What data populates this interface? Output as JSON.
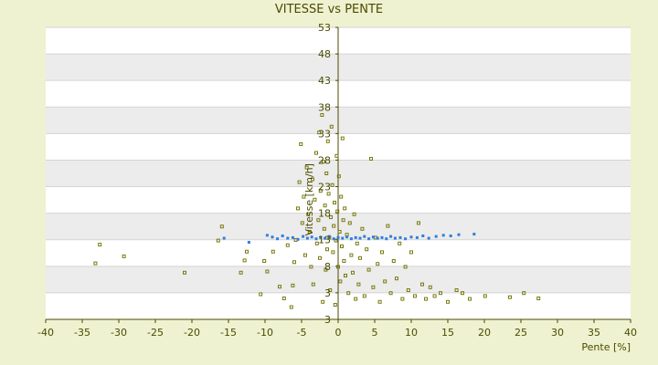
{
  "chart_data": {
    "type": "scatter",
    "title": "VITESSE vs PENTE",
    "xlabel": "Pente [%]",
    "ylabel": "Vitesse [km/h]",
    "xlim": [
      -40,
      40
    ],
    "ylim": [
      3,
      53
    ],
    "xticks": [
      "-40",
      "-35",
      "-30",
      "-25",
      "-20",
      "-15",
      "-10",
      "-5",
      "0",
      "5",
      "10",
      "15",
      "20",
      "25",
      "30",
      "35",
      "40"
    ],
    "yticks": [
      "3",
      "3",
      "8",
      "13",
      "18",
      "23",
      "28",
      "33",
      "38",
      "43",
      "48",
      "53"
    ],
    "grid": true,
    "colors": {
      "background": "#eef2d0",
      "band_light": "#ffffff",
      "band_dark": "#ececec",
      "axis": "#4b4b00",
      "scatter_olive": "#7a7a10",
      "scatter_blue": "#2f7fe0"
    },
    "series": [
      {
        "points": [
          [
            -33.2,
            12.6
          ],
          [
            -32.6,
            15.8
          ],
          [
            -29.3,
            13.8
          ],
          [
            -21.0,
            11.0
          ],
          [
            -16.4,
            16.5
          ],
          [
            -15.9,
            18.9
          ],
          [
            -13.3,
            11.0
          ],
          [
            -12.8,
            13.1
          ],
          [
            -12.5,
            14.6
          ],
          [
            -10.6,
            7.3
          ],
          [
            -10.1,
            13.0
          ],
          [
            -9.7,
            11.2
          ],
          [
            -8.9,
            14.6
          ],
          [
            -8.0,
            8.6
          ],
          [
            -7.4,
            6.6
          ],
          [
            -6.9,
            15.7
          ],
          [
            -6.4,
            5.1
          ],
          [
            -6.2,
            8.8
          ],
          [
            -6.0,
            12.8
          ],
          [
            -5.8,
            16.6
          ],
          [
            -5.5,
            22.0
          ],
          [
            -5.3,
            26.5
          ],
          [
            -5.1,
            33.0
          ],
          [
            -4.9,
            19.5
          ],
          [
            -4.7,
            24.0
          ],
          [
            -4.5,
            14.0
          ],
          [
            -4.3,
            29.0
          ],
          [
            -4.1,
            21.0
          ],
          [
            -3.9,
            18.0
          ],
          [
            -3.7,
            12.0
          ],
          [
            -3.5,
            27.0
          ],
          [
            -3.4,
            9.0
          ],
          [
            -3.2,
            23.5
          ],
          [
            -3.0,
            31.5
          ],
          [
            -2.9,
            16.0
          ],
          [
            -2.7,
            20.0
          ],
          [
            -2.6,
            35.0
          ],
          [
            -2.5,
            13.5
          ],
          [
            -2.4,
            25.0
          ],
          [
            -2.2,
            38.0
          ],
          [
            -2.1,
            6.0
          ],
          [
            -2.0,
            30.0
          ],
          [
            -1.9,
            18.5
          ],
          [
            -1.8,
            22.5
          ],
          [
            -1.7,
            11.5
          ],
          [
            -1.6,
            28.0
          ],
          [
            -1.5,
            15.0
          ],
          [
            -1.4,
            33.5
          ],
          [
            -1.3,
            24.5
          ],
          [
            -1.2,
            17.0
          ],
          [
            -1.1,
            8.0
          ],
          [
            -1.0,
            20.5
          ],
          [
            -0.9,
            36.0
          ],
          [
            -0.8,
            26.0
          ],
          [
            -0.7,
            14.5
          ],
          [
            -0.6,
            19.0
          ],
          [
            -0.5,
            23.0
          ],
          [
            -0.4,
            5.5
          ],
          [
            -0.3,
            16.5
          ],
          [
            -0.2,
            31.0
          ],
          [
            -0.1,
            21.5
          ],
          [
            0.0,
            12.0
          ],
          [
            0.1,
            27.5
          ],
          [
            0.2,
            18.0
          ],
          [
            0.3,
            9.5
          ],
          [
            0.4,
            24.0
          ],
          [
            0.5,
            15.5
          ],
          [
            0.6,
            34.0
          ],
          [
            0.7,
            20.0
          ],
          [
            0.8,
            13.0
          ],
          [
            0.9,
            22.0
          ],
          [
            1.0,
            10.5
          ],
          [
            1.2,
            17.5
          ],
          [
            1.4,
            7.5
          ],
          [
            1.6,
            19.5
          ],
          [
            1.8,
            14.0
          ],
          [
            2.0,
            11.0
          ],
          [
            2.2,
            21.0
          ],
          [
            2.4,
            6.5
          ],
          [
            2.6,
            16.0
          ],
          [
            2.8,
            9.0
          ],
          [
            3.0,
            13.5
          ],
          [
            3.3,
            18.5
          ],
          [
            3.6,
            7.0
          ],
          [
            3.9,
            15.0
          ],
          [
            4.2,
            11.5
          ],
          [
            4.5,
            30.5
          ],
          [
            4.8,
            8.5
          ],
          [
            5.1,
            17.0
          ],
          [
            5.4,
            12.5
          ],
          [
            5.7,
            6.0
          ],
          [
            6.0,
            14.5
          ],
          [
            6.4,
            9.5
          ],
          [
            6.8,
            19.0
          ],
          [
            7.2,
            7.5
          ],
          [
            7.6,
            13.0
          ],
          [
            8.0,
            10.0
          ],
          [
            8.4,
            16.0
          ],
          [
            8.8,
            6.5
          ],
          [
            9.2,
            12.0
          ],
          [
            9.6,
            8.0
          ],
          [
            10.0,
            14.5
          ],
          [
            10.5,
            7.0
          ],
          [
            11.0,
            19.5
          ],
          [
            11.5,
            9.0
          ],
          [
            12.0,
            6.5
          ],
          [
            12.6,
            8.5
          ],
          [
            13.2,
            7.0
          ],
          [
            14.0,
            7.5
          ],
          [
            15.0,
            6.0
          ],
          [
            16.2,
            8.0
          ],
          [
            17.0,
            7.5
          ],
          [
            18.0,
            6.5
          ],
          [
            20.1,
            7.0
          ],
          [
            23.5,
            6.8
          ],
          [
            25.4,
            7.5
          ],
          [
            27.4,
            6.6
          ]
        ]
      },
      {
        "points": [
          [
            -15.6,
            16.9
          ],
          [
            -12.2,
            16.2
          ],
          [
            -9.7,
            17.4
          ],
          [
            -9.0,
            17.1
          ],
          [
            -8.3,
            16.8
          ],
          [
            -7.6,
            17.3
          ],
          [
            -6.9,
            16.9
          ],
          [
            -6.2,
            17.0
          ],
          [
            -5.5,
            16.7
          ],
          [
            -4.8,
            17.2
          ],
          [
            -4.2,
            16.9
          ],
          [
            -3.6,
            17.1
          ],
          [
            -3.0,
            16.8
          ],
          [
            -2.4,
            17.0
          ],
          [
            -1.8,
            16.9
          ],
          [
            -1.2,
            17.2
          ],
          [
            -0.6,
            16.8
          ],
          [
            0.0,
            17.0
          ],
          [
            0.6,
            16.9
          ],
          [
            1.2,
            17.1
          ],
          [
            1.8,
            16.8
          ],
          [
            2.4,
            17.0
          ],
          [
            3.0,
            16.9
          ],
          [
            3.6,
            17.2
          ],
          [
            4.2,
            16.8
          ],
          [
            4.8,
            17.1
          ],
          [
            5.4,
            16.9
          ],
          [
            6.0,
            17.0
          ],
          [
            6.6,
            16.8
          ],
          [
            7.2,
            17.2
          ],
          [
            7.8,
            16.9
          ],
          [
            8.5,
            17.0
          ],
          [
            9.2,
            16.8
          ],
          [
            10.0,
            17.1
          ],
          [
            10.8,
            17.0
          ],
          [
            11.6,
            17.3
          ],
          [
            12.4,
            16.9
          ],
          [
            13.4,
            17.2
          ],
          [
            14.4,
            17.4
          ],
          [
            15.4,
            17.3
          ],
          [
            16.5,
            17.5
          ],
          [
            18.6,
            17.6
          ]
        ]
      }
    ]
  }
}
